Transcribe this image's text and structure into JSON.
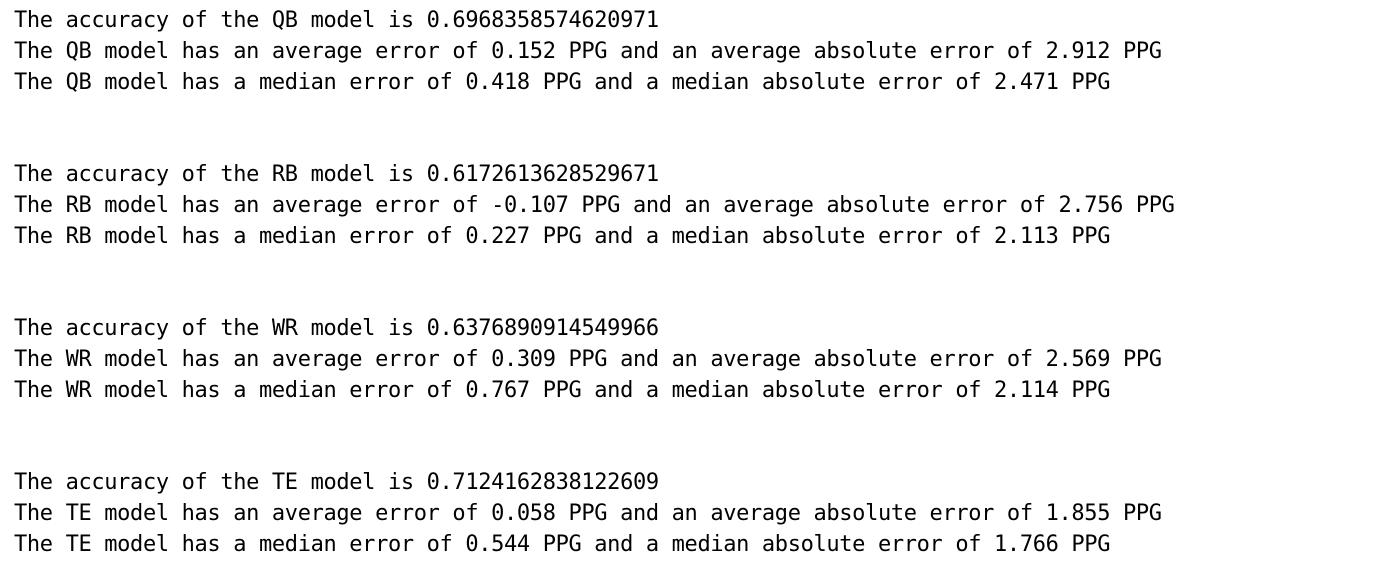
{
  "output": {
    "blocks": [
      {
        "lines": [
          "The accuracy of the QB model is 0.6968358574620971",
          "The QB model has an average error of 0.152 PPG and an average absolute error of 2.912 PPG",
          "The QB model has a median error of 0.418 PPG and a median absolute error of 2.471 PPG"
        ]
      },
      {
        "lines": [
          "The accuracy of the RB model is 0.6172613628529671",
          "The RB model has an average error of -0.107 PPG and an average absolute error of 2.756 PPG",
          "The RB model has a median error of 0.227 PPG and a median absolute error of 2.113 PPG"
        ]
      },
      {
        "lines": [
          "The accuracy of the WR model is 0.6376890914549966",
          "The WR model has an average error of 0.309 PPG and an average absolute error of 2.569 PPG",
          "The WR model has a median error of 0.767 PPG and a median absolute error of 2.114 PPG"
        ]
      },
      {
        "lines": [
          "The accuracy of the TE model is 0.7124162838122609",
          "The TE model has an average error of 0.058 PPG and an average absolute error of 1.855 PPG",
          "The TE model has a median error of 0.544 PPG and a median absolute error of 1.766 PPG"
        ]
      }
    ]
  }
}
